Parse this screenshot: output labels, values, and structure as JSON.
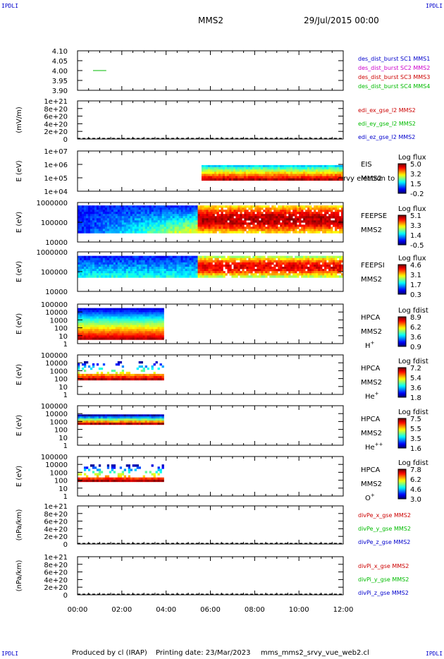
{
  "corner_label": "IPDLI",
  "header": {
    "spacecraft": "MMS2",
    "date": "29/Jul/2015 00:00"
  },
  "footer": {
    "producer": "Produced by cl (IRAP)",
    "printing": "Printing date: 23/Mar/2023",
    "filename": "mms_mms2_srvy_vue_web2.cl"
  },
  "colors": {
    "red": "#cc0000",
    "magenta": "#cc00cc",
    "green": "#00bb00",
    "blue": "#0000cc"
  },
  "chart_data": [
    {
      "type": "line",
      "id": "dist",
      "ylabel": "",
      "ytick_labels": [
        "4.10",
        "4.05",
        "4.00",
        "3.95",
        "3.90"
      ],
      "ylim": [
        3.9,
        4.1
      ],
      "legend": [
        {
          "text": "des_dist_burst SC1 MMS1",
          "color": "#0000cc"
        },
        {
          "text": "des_dist_burst SC2 MMS2",
          "color": "#cc00cc"
        },
        {
          "text": "des_dist_burst SC3 MMS3",
          "color": "#cc0000"
        },
        {
          "text": "des_dist_burst SC4 MMS4",
          "color": "#00bb00"
        }
      ],
      "series": [
        {
          "name": "des_dist_burst SC4 MMS4",
          "color": "#00bb00",
          "x": [
            0.7,
            1.3
          ],
          "y": [
            4.0,
            4.0
          ]
        }
      ]
    },
    {
      "type": "line",
      "id": "edi",
      "ylabel": "(mV/m)",
      "ytick_labels": [
        "1e+21",
        "8e+20",
        "6e+20",
        "4e+20",
        "2e+20",
        "0"
      ],
      "ylim": [
        0,
        1e+21
      ],
      "dashed_zero": true,
      "legend": [
        {
          "text": "edi_ex_gse_l2 MMS2",
          "color": "#cc0000"
        },
        {
          "text": "edi_ey_gse_l2 MMS2",
          "color": "#00bb00"
        },
        {
          "text": "edi_ez_gse_l2 MMS2",
          "color": "#0000cc"
        }
      ]
    },
    {
      "type": "heatmap",
      "id": "eis",
      "ylabel": "E (eV)",
      "ytick_labels": [
        "1e+07",
        "1e+06",
        "1e+05",
        "1e+04"
      ],
      "ylim": [
        4,
        7
      ],
      "labels": [
        "EIS",
        "MMS2"
      ],
      "overlay_text": "rvy electron to",
      "cbar": {
        "title": "Log flux",
        "ticks": [
          "5.0",
          "3.2",
          "1.5",
          "-0.2"
        ]
      },
      "data_x": [
        5.6,
        12.0
      ],
      "data_y": [
        4.8,
        5.95
      ]
    },
    {
      "type": "heatmap",
      "id": "feepse",
      "ylabel": "E (eV)",
      "ytick_labels": [
        "1000000",
        "100000",
        "10000"
      ],
      "ylim": [
        4,
        6
      ],
      "labels": [
        "FEEPSE",
        "MMS2"
      ],
      "cbar": {
        "title": "Log flux",
        "ticks": [
          "5.1",
          "3.3",
          "1.4",
          "-0.5"
        ]
      },
      "data_x": [
        0.0,
        12.0
      ],
      "data_y": [
        4.45,
        5.85
      ]
    },
    {
      "type": "heatmap",
      "id": "feepsi",
      "ylabel": "E (eV)",
      "ytick_labels": [
        "1000000",
        "100000",
        "10000"
      ],
      "ylim": [
        4,
        6
      ],
      "labels": [
        "FEEPSI",
        "MMS2"
      ],
      "cbar": {
        "title": "Log flux",
        "ticks": [
          "4.6",
          "3.1",
          "1.7",
          "0.3"
        ]
      },
      "data_x": [
        0.0,
        12.0
      ],
      "data_y": [
        4.7,
        5.8
      ]
    },
    {
      "type": "heatmap",
      "id": "hpca_h",
      "ylabel": "E (eV)",
      "ytick_labels": [
        "100000",
        "10000",
        "1000",
        "100",
        "10",
        "1"
      ],
      "ylim": [
        0,
        5
      ],
      "labels": [
        "HPCA",
        "MMS2"
      ],
      "species": "H",
      "species_sup": "+",
      "cbar": {
        "title": "Log fdist",
        "ticks": [
          "8.9",
          "6.2",
          "3.6",
          "0.9"
        ]
      },
      "data_x": [
        0.0,
        3.9
      ],
      "data_y": [
        0.5,
        4.5
      ]
    },
    {
      "type": "heatmap",
      "id": "hpca_he",
      "ylabel": "E (eV)",
      "ytick_labels": [
        "100000",
        "10000",
        "1000",
        "100",
        "10",
        "1"
      ],
      "ylim": [
        0,
        5
      ],
      "labels": [
        "HPCA",
        "MMS2"
      ],
      "species": "He",
      "species_sup": "+",
      "cbar": {
        "title": "Log fdist",
        "ticks": [
          "7.2",
          "5.4",
          "3.6",
          "1.8"
        ]
      },
      "data_x": [
        0.0,
        3.9
      ],
      "data_y": [
        1.8,
        4.2
      ]
    },
    {
      "type": "heatmap",
      "id": "hpca_hepp",
      "ylabel": "E (eV)",
      "ytick_labels": [
        "100000",
        "10000",
        "1000",
        "100",
        "10",
        "1"
      ],
      "ylim": [
        0,
        5
      ],
      "labels": [
        "HPCA",
        "MMS2"
      ],
      "species": "He",
      "species_sup": "++",
      "cbar": {
        "title": "Log fdist",
        "ticks": [
          "7.5",
          "5.5",
          "3.5",
          "1.6"
        ]
      },
      "data_x": [
        0.0,
        3.9
      ],
      "data_y": [
        2.6,
        3.9
      ]
    },
    {
      "type": "heatmap",
      "id": "hpca_o",
      "ylabel": "E (eV)",
      "ytick_labels": [
        "100000",
        "10000",
        "1000",
        "100",
        "10",
        "1"
      ],
      "ylim": [
        0,
        5
      ],
      "labels": [
        "HPCA",
        "MMS2"
      ],
      "species": "O",
      "species_sup": "+",
      "cbar": {
        "title": "Log fdist",
        "ticks": [
          "7.8",
          "6.2",
          "4.6",
          "3.0"
        ]
      },
      "data_x": [
        0.0,
        3.9
      ],
      "data_y": [
        1.8,
        4.0
      ]
    },
    {
      "type": "line",
      "id": "divpe",
      "ylabel": "(nPa/km)",
      "ytick_labels": [
        "1e+21",
        "8e+20",
        "6e+20",
        "4e+20",
        "2e+20",
        "0"
      ],
      "ylim": [
        0,
        1e+21
      ],
      "dashed_zero": true,
      "legend": [
        {
          "text": "divPe_x_gse MMS2",
          "color": "#cc0000"
        },
        {
          "text": "divPe_y_gse MMS2",
          "color": "#00bb00"
        },
        {
          "text": "divPe_z_gse MMS2",
          "color": "#0000cc"
        }
      ]
    },
    {
      "type": "line",
      "id": "divpi",
      "ylabel": "(nPa/km)",
      "ytick_labels": [
        "1e+21",
        "8e+20",
        "6e+20",
        "4e+20",
        "2e+20",
        "0"
      ],
      "ylim": [
        0,
        1e+21
      ],
      "dashed_zero": true,
      "legend": [
        {
          "text": "divPi_x_gse MMS2",
          "color": "#cc0000"
        },
        {
          "text": "divPi_y_gse MMS2",
          "color": "#00bb00"
        },
        {
          "text": "divPi_z_gse MMS2",
          "color": "#0000cc"
        }
      ]
    }
  ],
  "xaxis": {
    "ticks": [
      "00:00",
      "02:00",
      "04:00",
      "06:00",
      "08:00",
      "10:00",
      "12:00"
    ],
    "xlim": [
      0,
      12
    ]
  }
}
